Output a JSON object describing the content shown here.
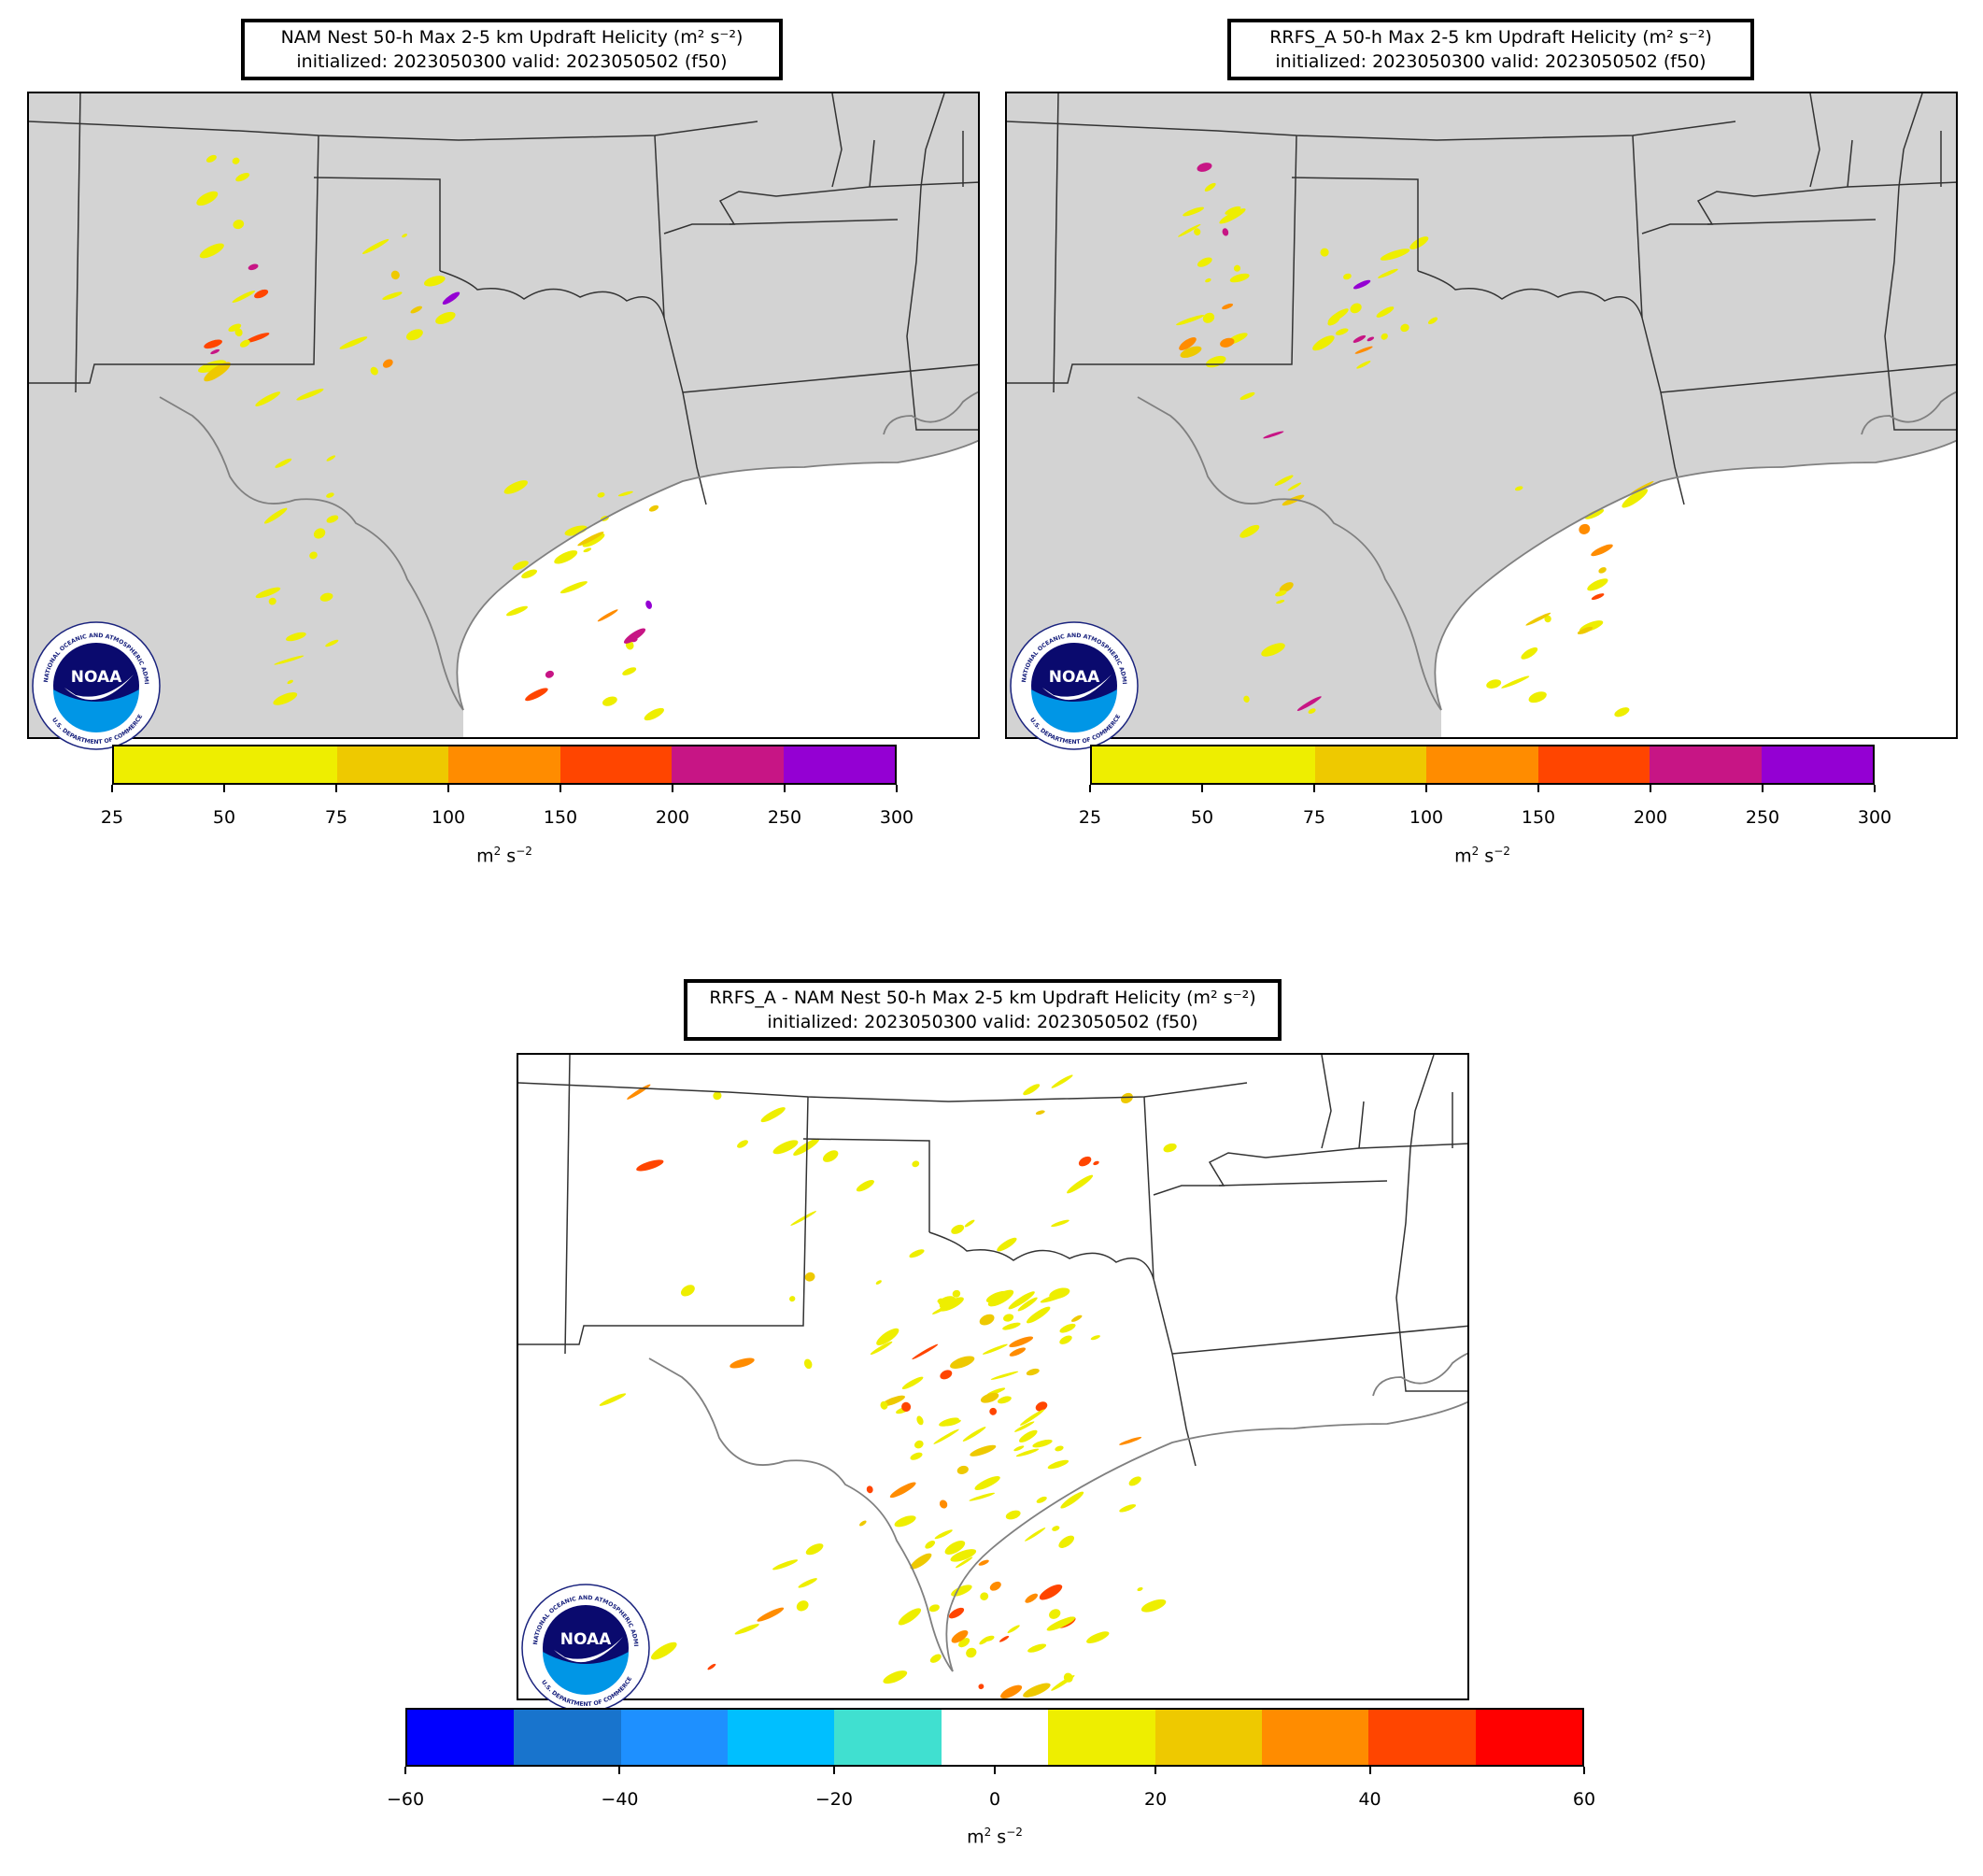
{
  "panels": [
    {
      "id": "nam",
      "title_line1": "NAM Nest 50-h Max 2-5 km Updraft Helicity (m² s⁻²)",
      "title_line2": "initialized: 2023050300 valid: 2023050502 (f50)"
    },
    {
      "id": "rrfs",
      "title_line1": "RRFS_A 50-h Max 2-5 km Updraft Helicity (m² s⁻²)",
      "title_line2": "initialized: 2023050300 valid: 2023050502 (f50)"
    },
    {
      "id": "diff",
      "title_line1": "RRFS_A - NAM Nest 50-h Max 2-5 km Updraft Helicity (m² s⁻²)",
      "title_line2": "initialized: 2023050300 valid: 2023050502 (f50)"
    }
  ],
  "colorbar_uh": {
    "bounds": [
      25,
      50,
      75,
      100,
      150,
      200,
      250,
      300
    ],
    "tick_labels": [
      "25",
      "50",
      "75",
      "100",
      "150",
      "200",
      "250",
      "300"
    ],
    "colors": [
      "#eeee00",
      "#eeee00",
      "#eec900",
      "#ff8c00",
      "#ff4500",
      "#c71585",
      "#9400d3"
    ],
    "units_base": "m",
    "units_rest": "s",
    "units_exp1": "2",
    "units_exp2": "−2"
  },
  "colorbar_diff": {
    "bounds": [
      -60,
      -50,
      -40,
      -30,
      -20,
      -10,
      10,
      20,
      30,
      40,
      50,
      60
    ],
    "tick_values": [
      -60,
      -40,
      -20,
      0,
      20,
      40,
      60
    ],
    "tick_labels": [
      "−60",
      "−40",
      "−20",
      "0",
      "20",
      "40",
      "60"
    ],
    "colors": [
      "#0000ff",
      "#1874cd",
      "#1e90ff",
      "#00bfff",
      "#40e0d0",
      "#ffffff",
      "#eeee00",
      "#eec900",
      "#ff8c00",
      "#ff4500",
      "#ff0000"
    ],
    "units_base": "m",
    "units_rest": "s",
    "units_exp1": "2",
    "units_exp2": "−2"
  },
  "logo": {
    "text": "NOAA",
    "ring_top": "NATIONAL OCEANIC AND ATMOSPHERIC ADMINISTRATION",
    "ring_bottom": "U.S. DEPARTMENT OF COMMERCE"
  },
  "map_colors": {
    "land": "#d3d3d3",
    "water": "#ffffff",
    "border": "#333333",
    "coast": "#808080"
  }
}
